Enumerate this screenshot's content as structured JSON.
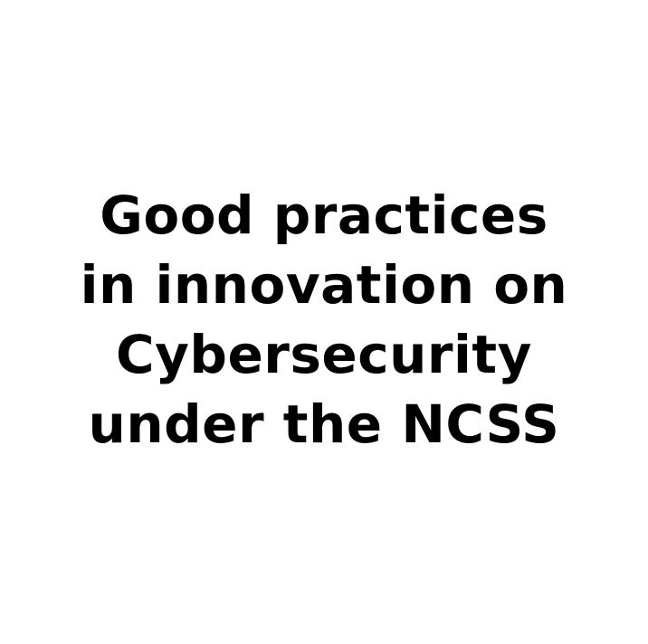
{
  "colors": {
    "background": "#ffffff",
    "text": "#000000"
  },
  "title": {
    "lines": [
      "Good practices",
      "in innovation on",
      "Cybersecurity",
      "under the NCSS"
    ]
  }
}
